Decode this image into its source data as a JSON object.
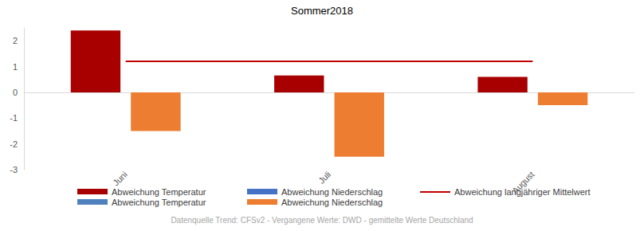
{
  "chart_data": {
    "type": "bar",
    "title": "Sommer2018",
    "source": "Datenquelle Trend: CFSv2 - Vergangene Werte: DWD - gemittelte Werte Deutschland",
    "categories": [
      "Juni",
      "Juli",
      "August"
    ],
    "series": [
      {
        "name": "Abweichung Temperatur",
        "color": "#a80000",
        "values": [
          2.4,
          0.65,
          0.6
        ]
      },
      {
        "name": "Abweichung Niederschlag",
        "color": "#4472c4",
        "values": [
          null,
          null,
          null
        ]
      },
      {
        "name": "Abweichung langjähriger Mittelwert",
        "type": "line",
        "color": "#c00000",
        "values": [
          1.2,
          1.2,
          1.2
        ]
      },
      {
        "name": "Abweichung Temperatur",
        "color": "#4f81bd",
        "values": [
          null,
          null,
          null
        ]
      },
      {
        "name": "Abweichung Niederschlag",
        "color": "#ed7d31",
        "values": [
          -1.5,
          -2.5,
          -0.5
        ]
      }
    ],
    "ylim": [
      -3,
      2.5
    ],
    "yticks": [
      -3,
      -2,
      -1,
      0,
      1,
      2
    ],
    "grid": false,
    "legend": "bottom"
  }
}
